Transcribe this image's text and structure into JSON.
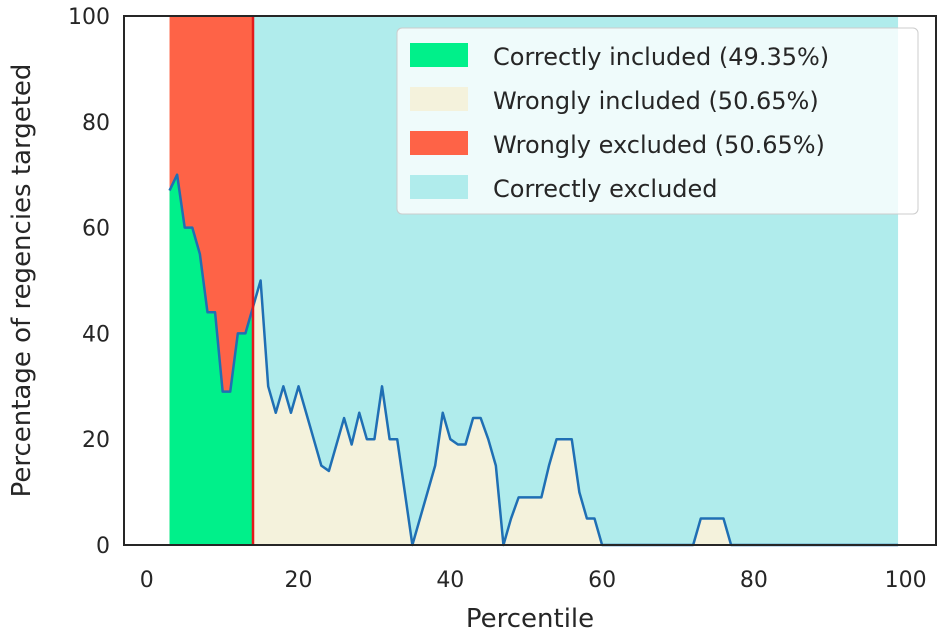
{
  "chart_data": {
    "type": "area",
    "title": "",
    "xlabel": "Percentile",
    "ylabel": "Percentage of regencies targeted",
    "xlim": [
      -3,
      104
    ],
    "ylim": [
      0,
      100
    ],
    "xticks": [
      0,
      20,
      40,
      60,
      80,
      100
    ],
    "yticks": [
      0,
      20,
      40,
      60,
      80,
      100
    ],
    "grid": false,
    "legend_position": "top-right",
    "x_start": 3,
    "x_end": 99,
    "threshold": 14,
    "line_color": "#1f6fb4",
    "threshold_color": "#e3191b",
    "series": [
      {
        "name": "Correctly included (49.35%)",
        "color": "#00f08a"
      },
      {
        "name": "Wrongly included (50.65%)",
        "color": "#f4f2dc"
      },
      {
        "name": "Wrongly excluded (50.65%)",
        "color": "#fe6347"
      },
      {
        "name": "Correctly excluded",
        "color": "#b0ecec"
      }
    ],
    "line": [
      [
        3,
        67
      ],
      [
        4,
        70
      ],
      [
        5,
        60
      ],
      [
        6,
        60
      ],
      [
        7,
        55
      ],
      [
        8,
        44
      ],
      [
        9,
        44
      ],
      [
        10,
        29
      ],
      [
        11,
        29
      ],
      [
        12,
        40
      ],
      [
        13,
        40
      ],
      [
        14,
        45
      ],
      [
        15,
        50
      ],
      [
        16,
        30
      ],
      [
        17,
        25
      ],
      [
        18,
        30
      ],
      [
        19,
        25
      ],
      [
        20,
        30
      ],
      [
        21,
        25
      ],
      [
        22,
        20
      ],
      [
        23,
        15
      ],
      [
        24,
        14
      ],
      [
        25,
        19
      ],
      [
        26,
        24
      ],
      [
        27,
        19
      ],
      [
        28,
        25
      ],
      [
        29,
        20
      ],
      [
        30,
        20
      ],
      [
        31,
        30
      ],
      [
        32,
        20
      ],
      [
        33,
        20
      ],
      [
        34,
        10
      ],
      [
        35,
        0
      ],
      [
        36,
        5
      ],
      [
        37,
        10
      ],
      [
        38,
        15
      ],
      [
        39,
        25
      ],
      [
        40,
        20
      ],
      [
        41,
        19
      ],
      [
        42,
        19
      ],
      [
        43,
        24
      ],
      [
        44,
        24
      ],
      [
        45,
        20
      ],
      [
        46,
        15
      ],
      [
        47,
        0
      ],
      [
        48,
        5
      ],
      [
        49,
        9
      ],
      [
        50,
        9
      ],
      [
        51,
        9
      ],
      [
        52,
        9
      ],
      [
        53,
        15
      ],
      [
        54,
        20
      ],
      [
        55,
        20
      ],
      [
        56,
        20
      ],
      [
        57,
        10
      ],
      [
        58,
        5
      ],
      [
        59,
        5
      ],
      [
        60,
        0
      ],
      [
        72,
        0
      ],
      [
        73,
        5
      ],
      [
        74,
        5
      ],
      [
        75,
        5
      ],
      [
        76,
        5
      ],
      [
        77,
        0
      ],
      [
        99,
        0
      ]
    ]
  }
}
